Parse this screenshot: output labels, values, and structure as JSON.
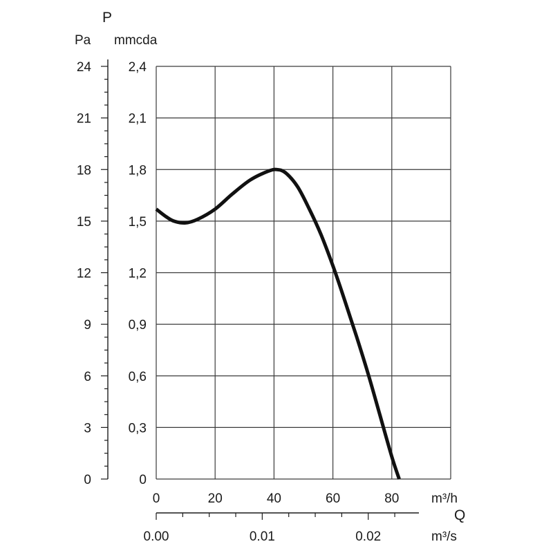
{
  "chart_data": {
    "type": "line",
    "quantity_letter_y": "P",
    "quantity_letter_x": "Q",
    "y_axis_left": {
      "unit": "Pa",
      "ticks": [
        "0",
        "3",
        "6",
        "9",
        "12",
        "15",
        "18",
        "21",
        "24"
      ],
      "range": [
        0,
        24
      ]
    },
    "y_axis_right": {
      "unit": "mmcda",
      "ticks": [
        "0",
        "0,3",
        "0,6",
        "0,9",
        "1,2",
        "1,5",
        "1,8",
        "2,1",
        "2,4"
      ],
      "range": [
        0,
        2.4
      ]
    },
    "x_axis_primary": {
      "unit": "m³/h",
      "ticks": [
        "0",
        "20",
        "40",
        "60",
        "80"
      ],
      "range": [
        0,
        100
      ]
    },
    "x_axis_secondary": {
      "unit": "m³/s",
      "ticks": [
        "0.00",
        "0.01",
        "0.02"
      ],
      "tick_values_m3h": [
        0,
        36,
        72
      ]
    },
    "grid": true,
    "series": [
      {
        "color": "#111111",
        "x": [
          0,
          3,
          6,
          10,
          14,
          20,
          26,
          32,
          38,
          41,
          44,
          48,
          52,
          56,
          60,
          64,
          68,
          72,
          76,
          80,
          82.5
        ],
        "y": [
          1.57,
          1.53,
          1.5,
          1.49,
          1.51,
          1.57,
          1.66,
          1.74,
          1.79,
          1.8,
          1.78,
          1.7,
          1.57,
          1.42,
          1.24,
          1.04,
          0.83,
          0.61,
          0.37,
          0.13,
          0.0
        ]
      }
    ]
  }
}
